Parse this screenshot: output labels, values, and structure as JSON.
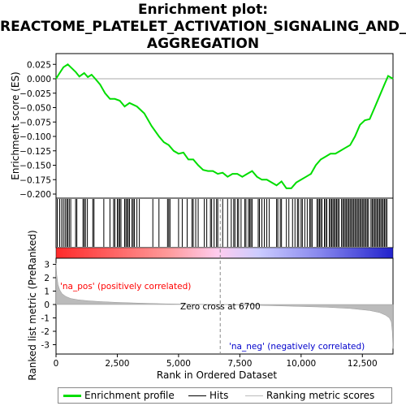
{
  "title_line1": "Enrichment plot:",
  "title_line2": "REACTOME_PLATELET_ACTIVATION_SIGNALING_AND_",
  "title_line3": "AGGREGATION",
  "colors": {
    "enrichment_line": "#00dd00",
    "hits": "#000000",
    "ranking_fill": "#bbbbbb",
    "zero_line": "#aaaaaa",
    "pos_label": "#ff0000",
    "neg_label": "#0000cc"
  },
  "legend": {
    "enrichment": "Enrichment profile",
    "hits": "Hits",
    "ranking": "Ranking metric scores"
  },
  "chart_data": [
    {
      "type": "line",
      "name": "enrichment-profile",
      "ylabel": "Enrichment score (ES)",
      "xlim": [
        0,
        13750
      ],
      "ylim": [
        -0.21,
        0.035
      ],
      "yticks": [
        0.025,
        0.0,
        -0.025,
        -0.05,
        -0.075,
        -0.1,
        -0.125,
        -0.15,
        -0.175,
        -0.2
      ],
      "ytick_labels": [
        "0.025",
        "0.000",
        "−0.025",
        "−0.050",
        "−0.075",
        "−0.100",
        "−0.125",
        "−0.150",
        "−0.175",
        "−0.200"
      ],
      "x": [
        0,
        150,
        300,
        480,
        650,
        800,
        950,
        1150,
        1300,
        1450,
        1600,
        1800,
        2000,
        2200,
        2400,
        2600,
        2800,
        3000,
        3300,
        3600,
        3900,
        4200,
        4400,
        4600,
        4800,
        5000,
        5200,
        5400,
        5600,
        5800,
        6000,
        6200,
        6400,
        6600,
        6800,
        7000,
        7200,
        7400,
        7600,
        7800,
        8000,
        8200,
        8400,
        8600,
        8800,
        9000,
        9200,
        9400,
        9600,
        9800,
        10000,
        10200,
        10400,
        10600,
        10800,
        11000,
        11200,
        11400,
        11600,
        11800,
        12000,
        12200,
        12400,
        12600,
        12800,
        13000,
        13200,
        13400,
        13550,
        13750
      ],
      "y": [
        0.0,
        0.01,
        0.02,
        0.025,
        0.018,
        0.012,
        0.004,
        0.01,
        0.003,
        0.007,
        0.0,
        -0.01,
        -0.025,
        -0.035,
        -0.035,
        -0.038,
        -0.048,
        -0.042,
        -0.048,
        -0.06,
        -0.082,
        -0.1,
        -0.11,
        -0.115,
        -0.125,
        -0.13,
        -0.128,
        -0.14,
        -0.14,
        -0.15,
        -0.158,
        -0.16,
        -0.16,
        -0.165,
        -0.163,
        -0.17,
        -0.165,
        -0.165,
        -0.17,
        -0.165,
        -0.16,
        -0.17,
        -0.175,
        -0.175,
        -0.18,
        -0.185,
        -0.178,
        -0.19,
        -0.19,
        -0.18,
        -0.175,
        -0.17,
        -0.165,
        -0.15,
        -0.14,
        -0.135,
        -0.13,
        -0.13,
        -0.125,
        -0.12,
        -0.115,
        -0.1,
        -0.08,
        -0.072,
        -0.07,
        -0.05,
        -0.03,
        -0.01,
        0.005,
        0.0
      ]
    },
    {
      "type": "area",
      "name": "ranked-list-metric",
      "xlabel": "Rank in Ordered Dataset",
      "ylabel": "Ranked list metric (PreRanked)",
      "xlim": [
        0,
        13750
      ],
      "ylim": [
        -3.6,
        3.6
      ],
      "xticks": [
        0,
        2500,
        5000,
        7500,
        10000,
        12500
      ],
      "xtick_labels": [
        "0",
        "2,500",
        "5,000",
        "7,500",
        "10,000",
        "12,500"
      ],
      "yticks": [
        3,
        2,
        1,
        0,
        -1,
        -2,
        -3
      ],
      "ytick_labels": [
        "3",
        "2",
        "1",
        "0",
        "-1",
        "-2",
        "-3"
      ],
      "x": [
        0,
        30,
        80,
        150,
        250,
        400,
        600,
        900,
        1300,
        1800,
        2500,
        3500,
        4500,
        5500,
        6700,
        8000,
        9500,
        11000,
        12000,
        12800,
        13200,
        13450,
        13600,
        13680,
        13720,
        13750
      ],
      "y": [
        3.1,
        2.2,
        1.5,
        1.1,
        0.8,
        0.6,
        0.45,
        0.35,
        0.28,
        0.22,
        0.16,
        0.1,
        0.05,
        0.02,
        0.0,
        -0.05,
        -0.12,
        -0.2,
        -0.3,
        -0.45,
        -0.6,
        -0.8,
        -1.0,
        -1.3,
        -2.0,
        -3.3
      ],
      "zero_cross": 6700,
      "zero_cross_label": "Zero cross at 6700",
      "pos_label": "'na_pos' (positively correlated)",
      "neg_label": "'na_neg' (negatively correlated)"
    }
  ],
  "hits": [
    50,
    150,
    230,
    300,
    370,
    430,
    480,
    540,
    600,
    800,
    850,
    1100,
    1150,
    1200,
    1280,
    1500,
    1550,
    1950,
    2200,
    2350,
    2400,
    2500,
    2550,
    2600,
    2650,
    2800,
    2850,
    2900,
    2950,
    3000,
    3100,
    3150,
    3200,
    3300,
    3400,
    3950,
    4200,
    4550,
    4600,
    4650,
    5000,
    5150,
    5350,
    5550,
    5600,
    5700,
    5800,
    6050,
    6150,
    6300,
    6350,
    6450,
    6550,
    6600,
    6800,
    7000,
    7150,
    7250,
    7300,
    7400,
    7450,
    7550,
    7700,
    7750,
    7850,
    7900,
    7950,
    8000,
    8250,
    8300,
    8400,
    8500,
    8600,
    8700,
    9000,
    9050,
    9150,
    9200,
    9400,
    9500,
    9650,
    9750,
    9850,
    9900,
    10000,
    10050,
    10150,
    10250,
    10350,
    10400,
    10450,
    10650,
    10700,
    10750,
    10800,
    10850,
    10950,
    11000,
    11050,
    11150,
    11200,
    11250,
    11300,
    11350,
    11400,
    11450,
    11500,
    11550,
    11650,
    11700,
    11750,
    11800,
    11850,
    11900,
    11950,
    12000,
    12050,
    12100,
    12150,
    12200,
    12250,
    12300,
    12350,
    12400,
    12450,
    12500,
    12550,
    12600,
    12650,
    12700,
    12750,
    12850,
    12900,
    12950,
    13000,
    13050,
    13100,
    13150,
    13200,
    13250,
    13300,
    13350,
    13400,
    13450,
    13500
  ]
}
